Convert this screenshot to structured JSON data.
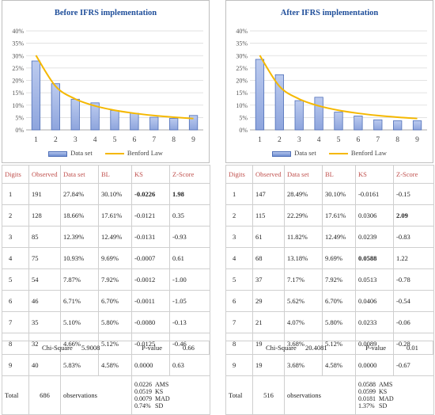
{
  "colors": {
    "bar": "#8ea5dd",
    "bar_edge": "#4f6fb8",
    "line": "#f5b800",
    "title": "#1f4e9a",
    "header": "#c0504d"
  },
  "legend": {
    "bars": "Data set",
    "line": "Benford Law"
  },
  "headers": [
    "Digits",
    "Observed",
    "Data set",
    "BL",
    "KS",
    "Z-Score"
  ],
  "chart_data": [
    {
      "type": "bar",
      "title": "Before IFRS implementation",
      "categories": [
        "1",
        "2",
        "3",
        "4",
        "5",
        "6",
        "7",
        "8",
        "9"
      ],
      "series": [
        {
          "name": "Data set",
          "type": "bar",
          "values": [
            27.84,
            18.66,
            12.39,
            10.93,
            7.87,
            6.71,
            5.1,
            4.66,
            5.83
          ]
        },
        {
          "name": "Benford Law",
          "type": "line",
          "values": [
            30.1,
            17.61,
            12.49,
            9.69,
            7.92,
            6.7,
            5.8,
            5.12,
            4.58
          ]
        }
      ],
      "yticks": [
        "0%",
        "5%",
        "10%",
        "15%",
        "20%",
        "25%",
        "30%",
        "35%",
        "40%"
      ],
      "ylim": [
        0,
        40
      ],
      "grid": true,
      "legend_position": "bottom"
    },
    {
      "type": "bar",
      "title": "After IFRS implementation",
      "categories": [
        "1",
        "2",
        "3",
        "4",
        "5",
        "6",
        "7",
        "8",
        "9"
      ],
      "series": [
        {
          "name": "Data set",
          "type": "bar",
          "values": [
            28.49,
            22.29,
            11.82,
            13.18,
            7.17,
            5.62,
            4.07,
            3.68,
            3.68
          ]
        },
        {
          "name": "Benford Law",
          "type": "line",
          "values": [
            30.1,
            17.61,
            12.49,
            9.69,
            7.92,
            6.7,
            5.8,
            5.12,
            4.58
          ]
        }
      ],
      "yticks": [
        "0%",
        "5%",
        "10%",
        "15%",
        "20%",
        "25%",
        "30%",
        "35%",
        "40%"
      ],
      "ylim": [
        0,
        40
      ],
      "grid": true,
      "legend_position": "bottom"
    }
  ],
  "tables": [
    {
      "rows": [
        [
          "1",
          "191",
          "27.84%",
          "30.10%",
          "-0.0226",
          "1.98"
        ],
        [
          "2",
          "128",
          "18.66%",
          "17.61%",
          "-0.0121",
          "0.35"
        ],
        [
          "3",
          "85",
          "12.39%",
          "12.49%",
          "-0.0131",
          "-0.93"
        ],
        [
          "4",
          "75",
          "10.93%",
          "9.69%",
          "-0.0007",
          "0.61"
        ],
        [
          "5",
          "54",
          "7.87%",
          "7.92%",
          "-0.0012",
          "-1.00"
        ],
        [
          "6",
          "46",
          "6.71%",
          "6.70%",
          "-0.0011",
          "-1.05"
        ],
        [
          "7",
          "35",
          "5.10%",
          "5.80%",
          "-0.0080",
          "-0.13"
        ],
        [
          "8",
          "32",
          "4.66%",
          "5.12%",
          "-0.0125",
          "-0.46"
        ],
        [
          "9",
          "40",
          "5.83%",
          "4.58%",
          "0.0000",
          "0.63"
        ]
      ],
      "bold": [
        [
          0,
          4
        ],
        [
          0,
          5
        ]
      ],
      "total": {
        "label": "Total",
        "count": "686",
        "word": "observations",
        "metrics": [
          [
            "0.0226",
            "AMS"
          ],
          [
            "0.0519",
            "KS"
          ],
          [
            "0.0079",
            "MAD"
          ],
          [
            "0.74%",
            "SD"
          ]
        ]
      },
      "chi": {
        "label": "Chi-Square",
        "value": "5.9008",
        "p_label": "P-value",
        "p_value": "0.66"
      }
    },
    {
      "rows": [
        [
          "1",
          "147",
          "28.49%",
          "30.10%",
          "-0.0161",
          "-0.15"
        ],
        [
          "2",
          "115",
          "22.29%",
          "17.61%",
          "0.0306",
          "2.09"
        ],
        [
          "3",
          "61",
          "11.82%",
          "12.49%",
          "0.0239",
          "-0.83"
        ],
        [
          "4",
          "68",
          "13.18%",
          "9.69%",
          "0.0588",
          "1.22"
        ],
        [
          "5",
          "37",
          "7.17%",
          "7.92%",
          "0.0513",
          "-0.78"
        ],
        [
          "6",
          "29",
          "5.62%",
          "6.70%",
          "0.0406",
          "-0.54"
        ],
        [
          "7",
          "21",
          "4.07%",
          "5.80%",
          "0.0233",
          "-0.06"
        ],
        [
          "8",
          "19",
          "3.68%",
          "5.12%",
          "0.0089",
          "-0.28"
        ],
        [
          "9",
          "19",
          "3.68%",
          "4.58%",
          "0.0000",
          "-0.67"
        ]
      ],
      "bold": [
        [
          1,
          5
        ],
        [
          3,
          4
        ]
      ],
      "total": {
        "label": "Total",
        "count": "516",
        "word": "observations",
        "metrics": [
          [
            "0.0588",
            "AMS"
          ],
          [
            "0.0599",
            "KS"
          ],
          [
            "0.0181",
            "MAD"
          ],
          [
            "1.37%",
            "SD"
          ]
        ]
      },
      "chi": {
        "label": "Chi-Square",
        "value": "20.4081",
        "p_label": "P-value",
        "p_value": "0.01"
      }
    }
  ]
}
